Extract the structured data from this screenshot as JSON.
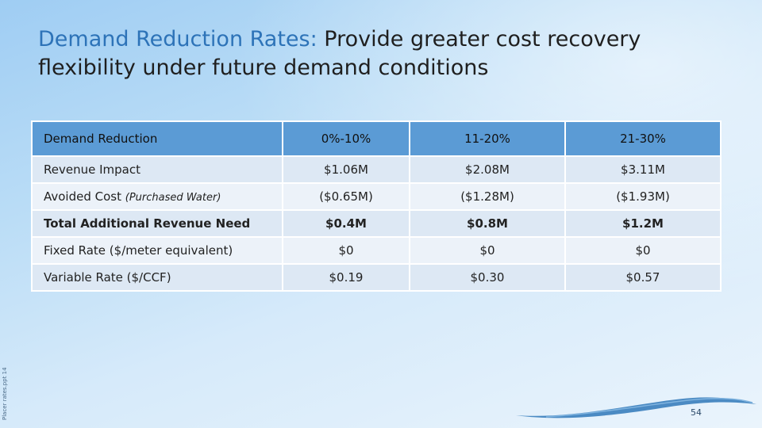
{
  "title": {
    "accent": "Demand Reduction Rates:",
    "rest": " Provide greater cost recovery flexibility under future demand conditions"
  },
  "side_label": "Placer rates.ppt 14",
  "table": {
    "header": [
      "Demand Reduction",
      "0%-10%",
      "11-20%",
      "21-30%"
    ],
    "rows": [
      {
        "label": "Revenue Impact",
        "sub": "",
        "values": [
          "$1.06M",
          "$2.08M",
          "$3.11M"
        ]
      },
      {
        "label": "Avoided Cost ",
        "sub": "(Purchased Water)",
        "values": [
          "($0.65M)",
          "($1.28M)",
          "($1.93M)"
        ]
      },
      {
        "label": "Total Additional Revenue Need",
        "sub": "",
        "values": [
          "$0.4M",
          "$0.8M",
          "$1.2M"
        ]
      },
      {
        "label": "Fixed Rate ($/meter equivalent)",
        "sub": "",
        "values": [
          "$0",
          "$0",
          "$0"
        ]
      },
      {
        "label": "Variable Rate ($/CCF)",
        "sub": "",
        "values": [
          "$0.19",
          "$0.30",
          "$0.57"
        ]
      }
    ]
  },
  "page_number": "54"
}
